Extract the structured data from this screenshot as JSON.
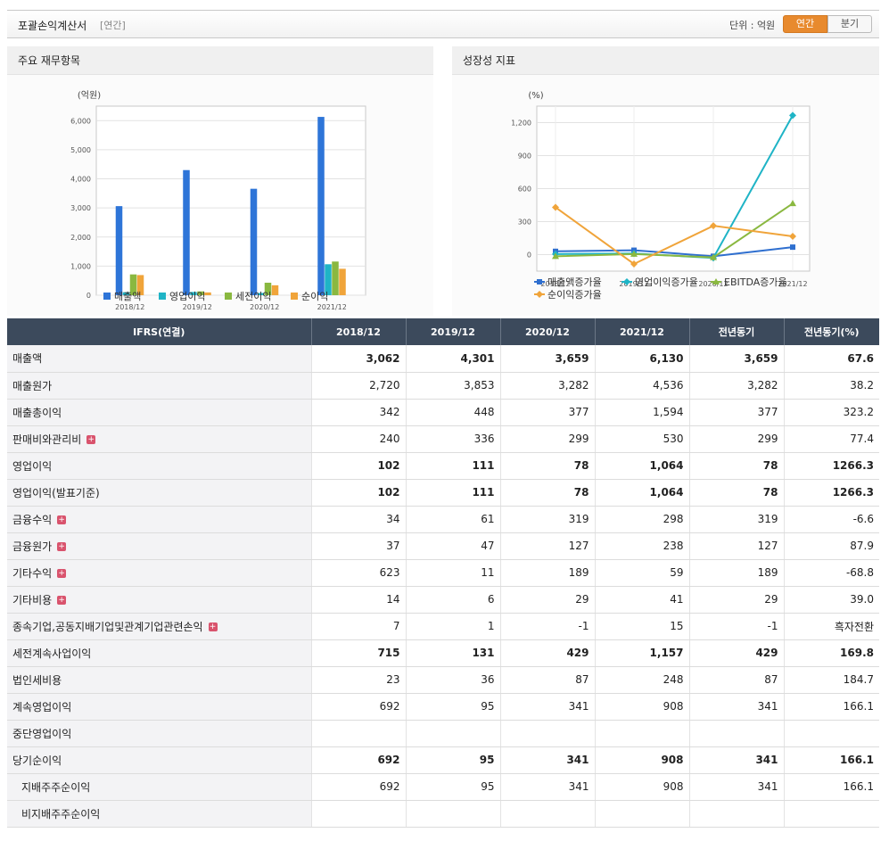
{
  "header": {
    "title": "포괄손익계산서",
    "subtitle": "[연간]",
    "unit_label": "단위 : 억원",
    "toggle_annual": "연간",
    "toggle_quarter": "분기"
  },
  "panels": {
    "left_title": "주요 재무항목",
    "right_title": "성장성 지표",
    "left_unit": "(억원)",
    "right_unit": "(%)"
  },
  "chart_data": [
    {
      "type": "bar",
      "ylabel": "(억원)",
      "categories": [
        "2018/12",
        "2019/12",
        "2020/12",
        "2021/12"
      ],
      "ylim": [
        0,
        6500
      ],
      "yticks": [
        0,
        1000,
        2000,
        3000,
        4000,
        5000,
        6000
      ],
      "ytick_labels": [
        "0",
        "1,000",
        "2,000",
        "3,000",
        "4,000",
        "5,000",
        "6,000"
      ],
      "series": [
        {
          "name": "매출액",
          "color": "#2e75d8",
          "values": [
            3062,
            4301,
            3659,
            6130
          ]
        },
        {
          "name": "영업이익",
          "color": "#1fb4c6",
          "values": [
            102,
            111,
            78,
            1064
          ]
        },
        {
          "name": "세전이익",
          "color": "#8ab840",
          "values": [
            715,
            131,
            429,
            1157
          ]
        },
        {
          "name": "순이익",
          "color": "#f0a43a",
          "values": [
            692,
            95,
            341,
            908
          ]
        }
      ],
      "legend": "bottom"
    },
    {
      "type": "line",
      "ylabel": "(%)",
      "categories": [
        "2018/12",
        "2019/12",
        "2020/12",
        "2021/12"
      ],
      "ylim": [
        -150,
        1350
      ],
      "yticks": [
        0,
        300,
        600,
        900,
        1200
      ],
      "ytick_labels": [
        "0",
        "300",
        "600",
        "900",
        "1,200"
      ],
      "series": [
        {
          "name": "매출액증가율",
          "color": "#2f6fcf",
          "marker": "square",
          "values": [
            30,
            40,
            -15,
            68
          ]
        },
        {
          "name": "영업이익증가율",
          "color": "#1fb4c6",
          "marker": "diamond",
          "values": [
            5,
            10,
            -30,
            1266
          ]
        },
        {
          "name": "EBITDA증가율",
          "color": "#8ab840",
          "marker": "triangle",
          "values": [
            -15,
            5,
            -25,
            465
          ]
        },
        {
          "name": "순이익증가율",
          "color": "#f0a43a",
          "marker": "diamond",
          "values": [
            430,
            -85,
            262,
            166
          ]
        }
      ],
      "legend": "bottom"
    }
  ],
  "table": {
    "headers": [
      "IFRS(연결)",
      "2018/12",
      "2019/12",
      "2020/12",
      "2021/12",
      "전년동기",
      "전년동기(%)"
    ],
    "rows": [
      {
        "label": "매출액",
        "bold": true,
        "expand": false,
        "values": [
          "3,062",
          "4,301",
          "3,659",
          "6,130",
          "3,659",
          "67.6"
        ]
      },
      {
        "label": "매출원가",
        "bold": false,
        "expand": false,
        "values": [
          "2,720",
          "3,853",
          "3,282",
          "4,536",
          "3,282",
          "38.2"
        ]
      },
      {
        "label": "매출총이익",
        "bold": false,
        "expand": false,
        "values": [
          "342",
          "448",
          "377",
          "1,594",
          "377",
          "323.2"
        ]
      },
      {
        "label": "판매비와관리비",
        "bold": false,
        "expand": true,
        "values": [
          "240",
          "336",
          "299",
          "530",
          "299",
          "77.4"
        ]
      },
      {
        "label": "영업이익",
        "bold": true,
        "expand": false,
        "values": [
          "102",
          "111",
          "78",
          "1,064",
          "78",
          "1266.3"
        ]
      },
      {
        "label": "영업이익(발표기준)",
        "bold": true,
        "expand": false,
        "values": [
          "102",
          "111",
          "78",
          "1,064",
          "78",
          "1266.3"
        ]
      },
      {
        "label": "금융수익",
        "bold": false,
        "expand": true,
        "values": [
          "34",
          "61",
          "319",
          "298",
          "319",
          "-6.6"
        ]
      },
      {
        "label": "금융원가",
        "bold": false,
        "expand": true,
        "values": [
          "37",
          "47",
          "127",
          "238",
          "127",
          "87.9"
        ]
      },
      {
        "label": "기타수익",
        "bold": false,
        "expand": true,
        "values": [
          "623",
          "11",
          "189",
          "59",
          "189",
          "-68.8"
        ]
      },
      {
        "label": "기타비용",
        "bold": false,
        "expand": true,
        "values": [
          "14",
          "6",
          "29",
          "41",
          "29",
          "39.0"
        ]
      },
      {
        "label": "종속기업,공동지배기업및관계기업관련손익",
        "bold": false,
        "expand": true,
        "values": [
          "7",
          "1",
          "-1",
          "15",
          "-1",
          "흑자전환"
        ]
      },
      {
        "label": "세전계속사업이익",
        "bold": true,
        "expand": false,
        "values": [
          "715",
          "131",
          "429",
          "1,157",
          "429",
          "169.8"
        ]
      },
      {
        "label": "법인세비용",
        "bold": false,
        "expand": false,
        "values": [
          "23",
          "36",
          "87",
          "248",
          "87",
          "184.7"
        ]
      },
      {
        "label": "계속영업이익",
        "bold": false,
        "expand": false,
        "values": [
          "692",
          "95",
          "341",
          "908",
          "341",
          "166.1"
        ]
      },
      {
        "label": "중단영업이익",
        "bold": false,
        "expand": false,
        "values": [
          "",
          "",
          "",
          "",
          "",
          ""
        ]
      },
      {
        "label": "당기순이익",
        "bold": true,
        "expand": false,
        "values": [
          "692",
          "95",
          "341",
          "908",
          "341",
          "166.1"
        ]
      },
      {
        "label": "지배주주순이익",
        "bold": false,
        "expand": false,
        "indent": true,
        "values": [
          "692",
          "95",
          "341",
          "908",
          "341",
          "166.1"
        ]
      },
      {
        "label": "비지배주주순이익",
        "bold": false,
        "expand": false,
        "indent": true,
        "values": [
          "",
          "",
          "",
          "",
          "",
          ""
        ]
      }
    ]
  }
}
